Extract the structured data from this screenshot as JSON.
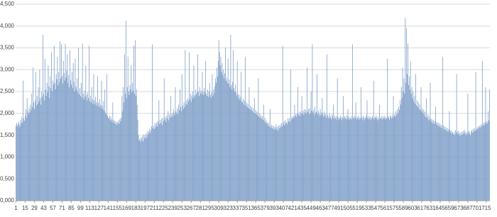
{
  "chart_data": {
    "type": "bar",
    "color": "#7b9cc7",
    "grid": true,
    "xlim": [
      0.5,
      720.5
    ],
    "xticks": [
      1,
      15,
      29,
      43,
      57,
      71,
      85,
      99,
      113,
      127,
      141,
      155,
      169,
      183,
      197,
      211,
      225,
      239,
      253,
      267,
      281,
      295,
      309,
      323,
      337,
      351,
      365,
      379,
      393,
      407,
      421,
      435,
      449,
      463,
      477,
      491,
      505,
      519,
      533,
      547,
      561,
      575,
      589,
      603,
      617,
      631,
      645,
      659,
      673,
      687,
      701,
      715
    ],
    "ylim": [
      0,
      4.5
    ],
    "yticks": [
      {
        "value": 0,
        "label": "0,000"
      },
      {
        "value": 0.5,
        "label": "0,500"
      },
      {
        "value": 1,
        "label": "1,000"
      },
      {
        "value": 1.5,
        "label": "1,500"
      },
      {
        "value": 2,
        "label": "2,000"
      },
      {
        "value": 2.5,
        "label": "2,500"
      },
      {
        "value": 3,
        "label": "3,000"
      },
      {
        "value": 3.5,
        "label": "3,500"
      },
      {
        "value": 4,
        "label": "4,000"
      },
      {
        "value": 4.5,
        "label": "4,500"
      }
    ],
    "x": [
      1,
      2,
      3,
      4,
      5,
      6,
      7,
      8,
      9,
      10,
      11,
      12,
      13,
      14,
      15,
      16,
      17,
      18,
      19,
      20,
      21,
      22,
      23,
      24,
      25,
      26,
      27,
      28,
      29,
      30,
      31,
      32,
      33,
      34,
      35,
      36,
      37,
      38,
      39,
      40,
      41,
      42,
      43,
      44,
      45,
      46,
      47,
      48,
      49,
      50,
      51,
      52,
      53,
      54,
      55,
      56,
      57,
      58,
      59,
      60,
      61,
      62,
      63,
      64,
      65,
      66,
      67,
      68,
      69,
      70,
      71,
      72,
      73,
      74,
      75,
      76,
      77,
      78,
      79,
      80,
      81,
      82,
      83,
      84,
      85,
      86,
      87,
      88,
      89,
      90,
      91,
      92,
      93,
      94,
      95,
      96,
      97,
      98,
      99,
      100,
      101,
      102,
      103,
      104,
      105,
      106,
      107,
      108,
      109,
      110,
      111,
      112,
      113,
      114,
      115,
      116,
      117,
      118,
      119,
      120,
      121,
      122,
      123,
      124,
      125,
      126,
      127,
      128,
      129,
      130,
      131,
      132,
      133,
      134,
      135,
      136,
      137,
      138,
      139,
      140,
      141,
      142,
      143,
      144,
      145,
      146,
      147,
      148,
      149,
      150,
      151,
      152,
      153,
      154,
      155,
      156,
      157,
      158,
      159,
      160,
      161,
      162,
      163,
      164,
      165,
      166,
      167,
      168,
      169,
      170,
      171,
      172,
      173,
      174,
      175,
      176,
      177,
      178,
      179,
      180,
      181,
      182,
      183,
      184,
      185,
      186,
      187,
      188,
      189,
      190,
      191,
      192,
      193,
      194,
      195,
      196,
      197,
      198,
      199,
      200,
      201,
      202,
      203,
      204,
      205,
      206,
      207,
      208,
      209,
      210,
      211,
      212,
      213,
      214,
      215,
      216,
      217,
      218,
      219,
      220,
      221,
      222,
      223,
      224,
      225,
      226,
      227,
      228,
      229,
      230,
      231,
      232,
      233,
      234,
      235,
      236,
      237,
      238,
      239,
      240,
      241,
      242,
      243,
      244,
      245,
      246,
      247,
      248,
      249,
      250,
      251,
      252,
      253,
      254,
      255,
      256,
      257,
      258,
      259,
      260,
      261,
      262,
      263,
      264,
      265,
      266,
      267,
      268,
      269,
      270,
      271,
      272,
      273,
      274,
      275,
      276,
      277,
      278,
      279,
      280,
      281,
      282,
      283,
      284,
      285,
      286,
      287,
      288,
      289,
      290,
      291,
      292,
      293,
      294,
      295,
      296,
      297,
      298,
      299,
      300,
      301,
      302,
      303,
      304,
      305,
      306,
      307,
      308,
      309,
      310,
      311,
      312,
      313,
      314,
      315,
      316,
      317,
      318,
      319,
      320,
      321,
      322,
      323,
      324,
      325,
      326,
      327,
      328,
      329,
      330,
      331,
      332,
      333,
      334,
      335,
      336,
      337,
      338,
      339,
      340,
      341,
      342,
      343,
      344,
      345,
      346,
      347,
      348,
      349,
      350,
      351,
      352,
      353,
      354,
      355,
      356,
      357,
      358,
      359,
      360,
      361,
      362,
      363,
      364,
      365,
      366,
      367,
      368,
      369,
      370,
      371,
      372,
      373,
      374,
      375,
      376,
      377,
      378,
      379,
      380,
      381,
      382,
      383,
      384,
      385,
      386,
      387,
      388,
      389,
      390,
      391,
      392,
      393,
      394,
      395,
      396,
      397,
      398,
      399,
      400,
      401,
      402,
      403,
      404,
      405,
      406,
      407,
      408,
      409,
      410,
      411,
      412,
      413,
      414,
      415,
      416,
      417,
      418,
      419,
      420,
      421,
      422,
      423,
      424,
      425,
      426,
      427,
      428,
      429,
      430,
      431,
      432,
      433,
      434,
      435,
      436,
      437,
      438,
      439,
      440,
      441,
      442,
      443,
      444,
      445,
      446,
      447,
      448,
      449,
      450,
      451,
      452,
      453,
      454,
      455,
      456,
      457,
      458,
      459,
      460,
      461,
      462,
      463,
      464,
      465,
      466,
      467,
      468,
      469,
      470,
      471,
      472,
      473,
      474,
      475,
      476,
      477,
      478,
      479,
      480,
      481,
      482,
      483,
      484,
      485,
      486,
      487,
      488,
      489,
      490,
      491,
      492,
      493,
      494,
      495,
      496,
      497,
      498,
      499,
      500,
      501,
      502,
      503,
      504,
      505,
      506,
      507,
      508,
      509,
      510,
      511,
      512,
      513,
      514,
      515,
      516,
      517,
      518,
      519,
      520,
      521,
      522,
      523,
      524,
      525,
      526,
      527,
      528,
      529,
      530,
      531,
      532,
      533,
      534,
      535,
      536,
      537,
      538,
      539,
      540,
      541,
      542,
      543,
      544,
      545,
      546,
      547,
      548,
      549,
      550,
      551,
      552,
      553,
      554,
      555,
      556,
      557,
      558,
      559,
      560,
      561,
      562,
      563,
      564,
      565,
      566,
      567,
      568,
      569,
      570,
      571,
      572,
      573,
      574,
      575,
      576,
      577,
      578,
      579,
      580,
      581,
      582,
      583,
      584,
      585,
      586,
      587,
      588,
      589,
      590,
      591,
      592,
      593,
      594,
      595,
      596,
      597,
      598,
      599,
      600,
      601,
      602,
      603,
      604,
      605,
      606,
      607,
      608,
      609,
      610,
      611,
      612,
      613,
      614,
      615,
      616,
      617,
      618,
      619,
      620,
      621,
      622,
      623,
      624,
      625,
      626,
      627,
      628,
      629,
      630,
      631,
      632,
      633,
      634,
      635,
      636,
      637,
      638,
      639,
      640,
      641,
      642,
      643,
      644,
      645,
      646,
      647,
      648,
      649,
      650,
      651,
      652,
      653,
      654,
      655,
      656,
      657,
      658,
      659,
      660,
      661,
      662,
      663,
      664,
      665,
      666,
      667,
      668,
      669,
      670,
      671,
      672,
      673,
      674,
      675,
      676,
      677,
      678,
      679,
      680,
      681,
      682,
      683,
      684,
      685,
      686,
      687,
      688,
      689,
      690,
      691,
      692,
      693,
      694,
      695,
      696,
      697,
      698,
      699,
      700,
      701,
      702,
      703,
      704,
      705,
      706,
      707,
      708,
      709,
      710,
      711,
      712,
      713,
      714,
      715,
      716,
      717,
      718,
      719,
      720
    ],
    "values": [
      1.72,
      1.78,
      1.7,
      1.76,
      1.81,
      1.74,
      1.69,
      1.85,
      1.77,
      1.92,
      1.8,
      2.75,
      1.88,
      1.83,
      1.95,
      2.1,
      1.9,
      2.35,
      2.05,
      1.98,
      2.12,
      2.02,
      2.2,
      2.08,
      2.45,
      2.15,
      3.05,
      2.25,
      2.1,
      2.3,
      2.95,
      2.18,
      2.4,
      2.22,
      2.6,
      2.28,
      3.0,
      2.35,
      2.2,
      2.5,
      2.38,
      3.8,
      2.45,
      2.3,
      3.25,
      2.55,
      2.4,
      2.7,
      2.48,
      3.1,
      2.62,
      2.35,
      2.85,
      2.58,
      3.4,
      2.5,
      2.75,
      2.66,
      3.55,
      2.7,
      2.55,
      2.9,
      2.78,
      3.3,
      2.64,
      2.95,
      2.72,
      3.65,
      2.8,
      3.58,
      2.86,
      2.68,
      3.2,
      2.92,
      2.75,
      3.6,
      2.82,
      2.98,
      3.35,
      2.7,
      2.88,
      2.6,
      3.45,
      2.76,
      2.66,
      2.95,
      2.58,
      3.15,
      2.72,
      2.5,
      3.25,
      2.62,
      2.55,
      2.8,
      2.48,
      3.5,
      2.44,
      2.58,
      2.4,
      2.7,
      2.36,
      3.6,
      2.45,
      2.32,
      2.52,
      2.38,
      3.1,
      2.42,
      2.3,
      2.48,
      2.35,
      3.55,
      2.28,
      2.4,
      2.25,
      2.6,
      2.32,
      2.22,
      2.9,
      2.3,
      2.2,
      2.38,
      2.26,
      2.18,
      2.85,
      2.24,
      2.15,
      2.32,
      2.2,
      2.12,
      2.75,
      2.18,
      2.1,
      2.28,
      2.06,
      2.55,
      2.02,
      1.98,
      2.9,
      1.95,
      1.9,
      1.88,
      1.95,
      1.84,
      1.92,
      1.86,
      1.8,
      2.25,
      1.85,
      1.78,
      1.83,
      1.76,
      1.82,
      1.74,
      1.8,
      1.78,
      1.85,
      1.76,
      1.88,
      1.82,
      1.9,
      2.4,
      2.05,
      2.6,
      2.25,
      3.35,
      2.45,
      4.12,
      2.35,
      2.6,
      3.3,
      2.5,
      2.42,
      2.65,
      2.55,
      3.1,
      2.48,
      2.7,
      2.52,
      3.55,
      2.45,
      3.68,
      2.4,
      2.55,
      2.2,
      1.85,
      1.5,
      1.38,
      1.42,
      1.35,
      1.45,
      1.4,
      1.48,
      1.36,
      1.52,
      1.44,
      1.5,
      1.42,
      1.55,
      1.46,
      1.6,
      1.52,
      1.58,
      1.65,
      1.55,
      1.62,
      1.7,
      3.58,
      1.66,
      1.72,
      1.64,
      1.78,
      1.68,
      1.75,
      1.8,
      1.7,
      1.82,
      2.3,
      1.76,
      1.85,
      1.78,
      1.88,
      1.74,
      1.9,
      1.82,
      2.8,
      1.86,
      1.92,
      1.8,
      1.95,
      1.88,
      2.05,
      1.84,
      1.98,
      1.9,
      2.4,
      1.94,
      2.0,
      1.92,
      2.1,
      2.02,
      1.96,
      2.6,
      2.05,
      2.0,
      2.12,
      1.98,
      2.2,
      2.08,
      2.55,
      2.15,
      2.05,
      2.9,
      2.18,
      2.1,
      2.25,
      2.14,
      3.45,
      2.22,
      2.3,
      2.2,
      2.35,
      2.28,
      3.4,
      2.32,
      2.45,
      2.26,
      2.4,
      2.5,
      2.34,
      3.1,
      2.42,
      2.38,
      2.55,
      2.44,
      2.48,
      3.35,
      2.5,
      2.4,
      2.6,
      2.46,
      2.52,
      2.44,
      2.95,
      2.5,
      2.42,
      2.58,
      2.48,
      3.2,
      2.45,
      2.4,
      2.55,
      2.38,
      2.5,
      2.7,
      2.42,
      2.36,
      2.48,
      2.9,
      2.4,
      2.55,
      2.46,
      2.62,
      2.8,
      2.7,
      3.05,
      2.85,
      3.2,
      3.68,
      3.4,
      3.1,
      3.3,
      2.95,
      3.15,
      2.88,
      3.0,
      2.8,
      2.92,
      3.5,
      2.75,
      2.82,
      2.7,
      3.25,
      2.68,
      2.78,
      2.6,
      3.8,
      2.65,
      2.55,
      2.72,
      3.45,
      2.58,
      2.5,
      2.66,
      2.48,
      2.4,
      3.2,
      2.45,
      2.35,
      2.42,
      2.3,
      2.38,
      2.95,
      2.28,
      2.25,
      2.34,
      2.2,
      2.3,
      3.3,
      2.18,
      2.26,
      2.15,
      2.22,
      2.12,
      2.6,
      2.1,
      2.18,
      2.08,
      2.14,
      2.05,
      2.12,
      2.02,
      2.35,
      2.0,
      2.08,
      1.98,
      2.04,
      1.95,
      2.8,
      1.92,
      2.0,
      1.9,
      1.96,
      1.88,
      1.94,
      1.85,
      2.2,
      1.82,
      1.9,
      1.78,
      1.84,
      1.76,
      1.8,
      1.72,
      1.78,
      1.7,
      2.1,
      1.68,
      1.74,
      1.66,
      1.72,
      1.65,
      1.7,
      1.62,
      1.68,
      1.75,
      1.64,
      1.7,
      1.6,
      1.72,
      1.66,
      1.74,
      1.68,
      1.78,
      1.7,
      3.55,
      1.76,
      1.82,
      1.72,
      1.85,
      1.78,
      1.8,
      1.75,
      1.88,
      1.82,
      1.9,
      1.8,
      3.0,
      1.86,
      1.92,
      1.88,
      1.95,
      1.9,
      2.2,
      1.94,
      1.98,
      1.92,
      2.0,
      2.6,
      1.96,
      2.02,
      1.94,
      2.05,
      1.98,
      2.4,
      2.0,
      2.06,
      1.96,
      2.1,
      2.02,
      2.08,
      2.0,
      3.05,
      2.04,
      2.1,
      1.98,
      2.12,
      2.0,
      2.5,
      2.06,
      3.58,
      2.02,
      2.08,
      1.96,
      2.15,
      2.0,
      2.04,
      2.9,
      1.98,
      2.06,
      2.0,
      1.94,
      2.1,
      1.96,
      2.02,
      2.35,
      1.98,
      1.92,
      2.04,
      1.95,
      2.0,
      1.9,
      3.35,
      1.96,
      1.92,
      1.88,
      2.0,
      1.94,
      1.9,
      1.86,
      1.98,
      1.92,
      2.2,
      1.88,
      1.95,
      1.9,
      1.86,
      1.94,
      2.8,
      1.9,
      1.85,
      1.92,
      1.88,
      1.96,
      1.9,
      1.84,
      1.92,
      2.4,
      1.88,
      1.94,
      1.9,
      1.86,
      1.95,
      1.88,
      2.1,
      1.92,
      1.85,
      1.9,
      1.88,
      1.94,
      1.86,
      3.58,
      1.92,
      1.88,
      1.95,
      1.9,
      2.25,
      1.86,
      1.92,
      1.88,
      1.94,
      1.85,
      1.9,
      1.88,
      2.6,
      1.92,
      1.86,
      1.95,
      1.9,
      1.84,
      1.92,
      1.88,
      1.96,
      2.3,
      1.9,
      1.86,
      1.94,
      1.88,
      1.92,
      1.85,
      1.9,
      1.94,
      1.88,
      2.75,
      1.86,
      1.92,
      1.9,
      1.95,
      1.88,
      1.84,
      1.92,
      1.86,
      2.2,
      1.9,
      1.88,
      1.94,
      1.86,
      1.92,
      1.88,
      1.95,
      1.9,
      1.86,
      1.92,
      1.88,
      3.25,
      1.94,
      1.9,
      1.86,
      1.95,
      1.92,
      1.88,
      1.96,
      1.9,
      2.4,
      1.94,
      1.98,
      1.92,
      2.05,
      1.96,
      2.1,
      2.0,
      2.15,
      2.08,
      2.3,
      2.2,
      2.6,
      2.35,
      3.05,
      2.5,
      2.8,
      2.45,
      4.18,
      2.7,
      3.95,
      2.9,
      3.6,
      2.65,
      2.85,
      2.55,
      3.2,
      2.45,
      2.6,
      2.35,
      2.5,
      2.28,
      2.4,
      2.22,
      2.9,
      2.18,
      2.3,
      2.15,
      2.25,
      2.1,
      2.2,
      2.08,
      2.6,
      2.05,
      2.12,
      2.0,
      2.08,
      1.96,
      2.04,
      1.92,
      2.35,
      1.9,
      1.98,
      1.86,
      1.94,
      1.84,
      2.7,
      1.88,
      1.8,
      1.86,
      1.78,
      1.84,
      1.76,
      1.82,
      2.15,
      1.78,
      1.74,
      1.8,
      1.72,
      1.78,
      1.7,
      1.76,
      1.68,
      1.74,
      1.66,
      3.3,
      1.72,
      1.64,
      1.7,
      1.62,
      1.68,
      1.6,
      1.66,
      1.58,
      1.64,
      2.05,
      1.62,
      1.56,
      1.6,
      1.54,
      1.58,
      1.52,
      1.56,
      1.5,
      1.62,
      1.55,
      2.9,
      1.58,
      1.52,
      1.6,
      1.54,
      1.48,
      1.56,
      1.5,
      1.58,
      1.52,
      1.6,
      1.54,
      1.62,
      1.56,
      1.5,
      1.58,
      1.52,
      2.45,
      1.56,
      1.6,
      1.54,
      1.5,
      1.58,
      1.62,
      1.56,
      1.64,
      1.58,
      1.66,
      1.6,
      2.95,
      1.62,
      1.68,
      1.64,
      1.7,
      1.66,
      1.72,
      1.68,
      1.75,
      1.7,
      3.2,
      1.74,
      1.78,
      1.72,
      1.8,
      2.6,
      1.76,
      1.82,
      1.78,
      2.05,
      1.84,
      2.55
    ]
  }
}
